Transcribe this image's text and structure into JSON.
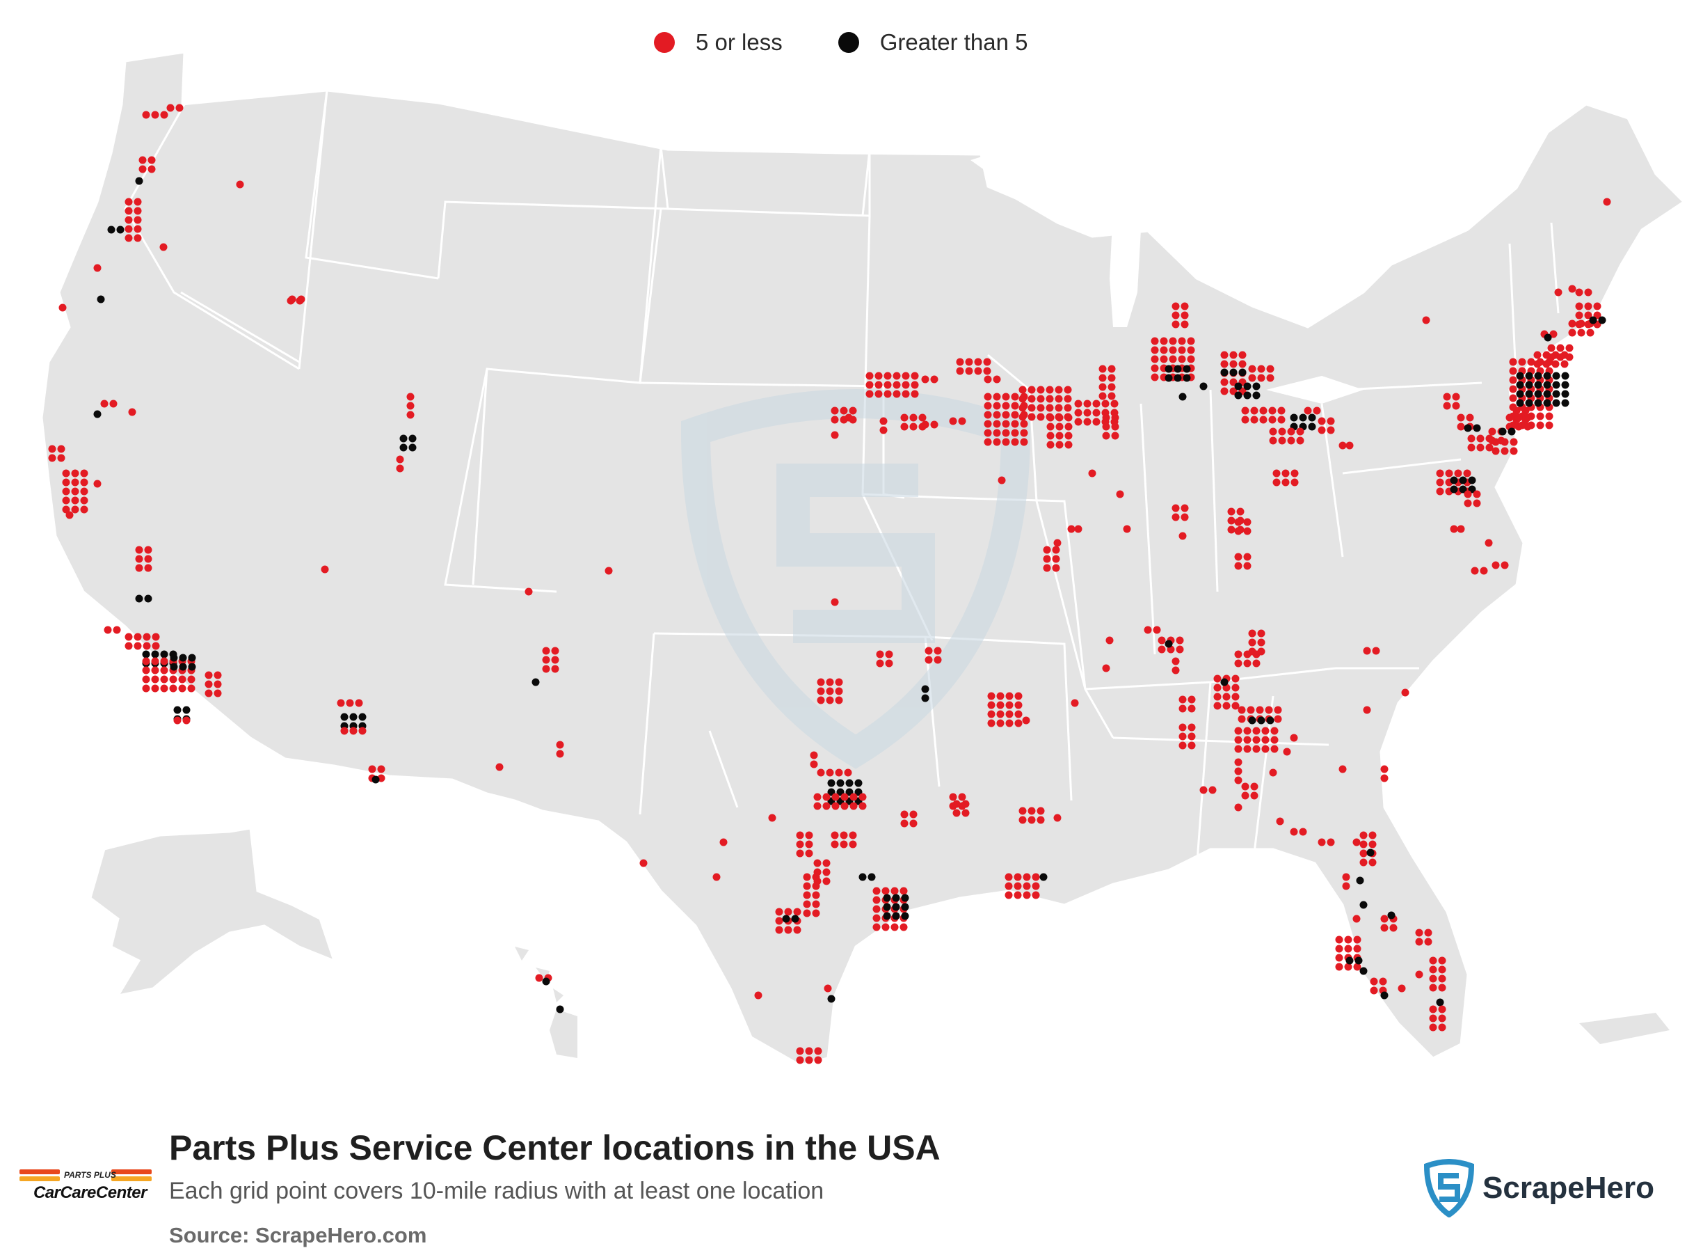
{
  "legend": {
    "items": [
      {
        "label": "5 or less",
        "color": "#e31b23"
      },
      {
        "label": "Greater than 5",
        "color": "#0a0a0a"
      }
    ]
  },
  "title": "Parts Plus Service Center locations in the USA",
  "subtitle": "Each grid point covers 10-mile radius with at least one location",
  "source": "Source: ScrapeHero.com",
  "brand": {
    "top_text": "PARTS PLUS",
    "name": "CarCareCenter",
    "stripe_colors": [
      "#e8481c",
      "#f5a623"
    ]
  },
  "watermark": {
    "name": "ScrapeHero"
  },
  "colors": {
    "land": "#e4e4e4",
    "border": "#ffffff",
    "red": "#e31b23",
    "black": "#0a0a0a",
    "watermark": "#c9d8e2"
  }
}
